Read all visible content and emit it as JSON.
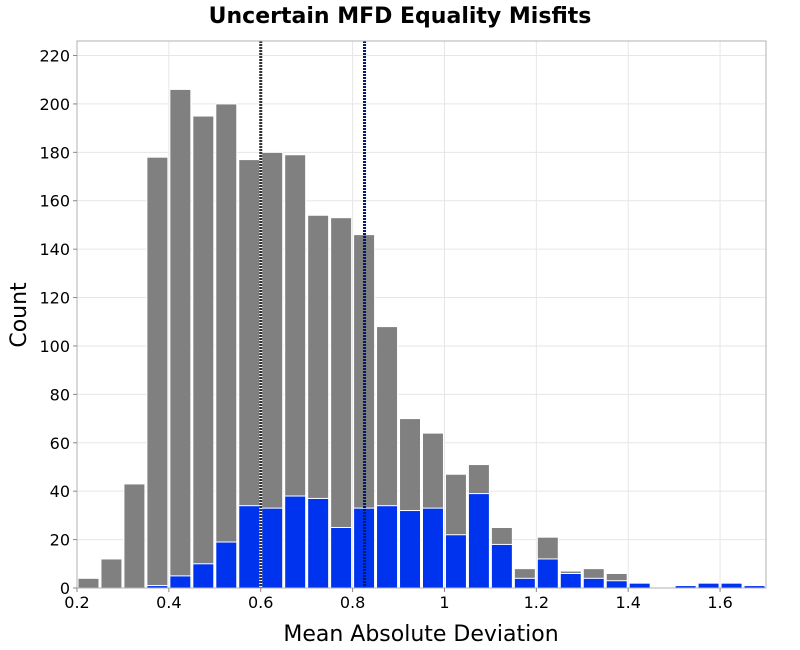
{
  "chart_data": {
    "type": "bar",
    "title": "Uncertain MFD Equality Misfits",
    "xlabel": "Mean Absolute Deviation",
    "ylabel": "Count",
    "xlim": [
      0.2,
      1.7
    ],
    "ylim": [
      0,
      226
    ],
    "x_ticks": [
      "0.2",
      "0.4",
      "0.6",
      "0.8",
      "1",
      "1.2",
      "1.4",
      "1.6"
    ],
    "x_tick_values": [
      0.2,
      0.4,
      0.6,
      0.8,
      1.0,
      1.2,
      1.4,
      1.6
    ],
    "y_ticks": [
      "0",
      "20",
      "40",
      "60",
      "80",
      "100",
      "120",
      "140",
      "160",
      "180",
      "200",
      "220"
    ],
    "y_tick_values": [
      0,
      20,
      40,
      60,
      80,
      100,
      120,
      140,
      160,
      180,
      200,
      220
    ],
    "grid": true,
    "bin_width": 0.05,
    "bin_starts": [
      0.2,
      0.25,
      0.3,
      0.35,
      0.4,
      0.45,
      0.5,
      0.55,
      0.6,
      0.65,
      0.7,
      0.75,
      0.8,
      0.85,
      0.9,
      0.95,
      1.0,
      1.05,
      1.1,
      1.15,
      1.2,
      1.25,
      1.3,
      1.35,
      1.4,
      1.45,
      1.5,
      1.55,
      1.6,
      1.65
    ],
    "series": [
      {
        "color": "#808080",
        "values": [
          4,
          12,
          43,
          178,
          206,
          195,
          200,
          177,
          180,
          179,
          154,
          153,
          146,
          108,
          70,
          64,
          47,
          51,
          25,
          8,
          21,
          7,
          8,
          6,
          0,
          0,
          0,
          0,
          0,
          0
        ]
      },
      {
        "color": "#0033ee",
        "values": [
          0,
          0,
          0,
          1,
          5,
          10,
          19,
          34,
          33,
          38,
          37,
          25,
          33,
          34,
          32,
          33,
          22,
          39,
          18,
          4,
          12,
          6,
          4,
          3,
          2,
          0,
          1,
          2,
          2,
          1
        ]
      }
    ],
    "reference_lines": [
      {
        "x": 0.6,
        "color": "#333333"
      },
      {
        "x": 0.826,
        "color": "#001a66"
      }
    ]
  }
}
